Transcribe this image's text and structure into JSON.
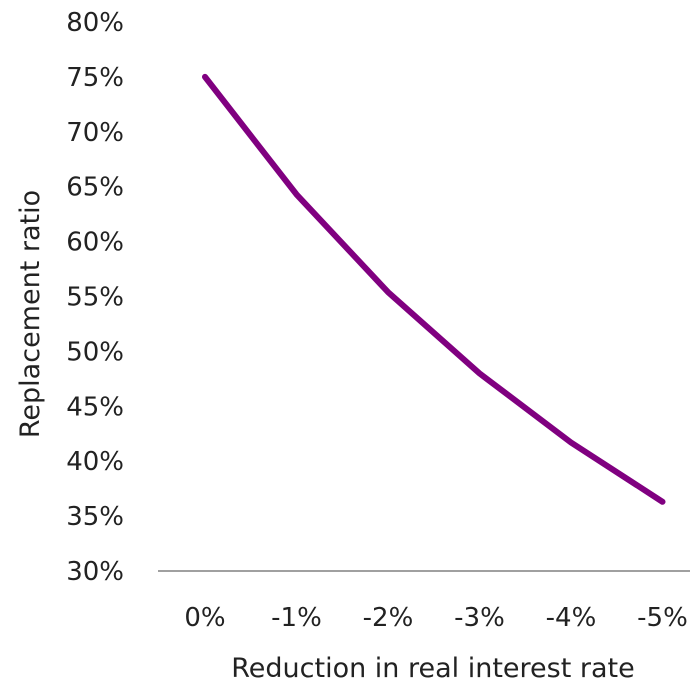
{
  "chart_data": {
    "type": "line",
    "title": "",
    "xlabel": "Reduction in real interest rate",
    "ylabel": "Replacement ratio",
    "categories": [
      "0%",
      "-1%",
      "-2%",
      "-3%",
      "-4%",
      "-5%"
    ],
    "series": [
      {
        "values": [
          75,
          64.3,
          55.4,
          48,
          41.7,
          36.3
        ],
        "color": "#800080"
      }
    ],
    "ylim": [
      30,
      80
    ],
    "yticks": [
      30,
      35,
      40,
      45,
      50,
      55,
      60,
      65,
      70,
      75,
      80
    ],
    "ytick_labels": [
      "30%",
      "35%",
      "40%",
      "45%",
      "50%",
      "55%",
      "60%",
      "65%",
      "70%",
      "75%",
      "80%"
    ],
    "grid": false,
    "legend": "none",
    "axis_color": "#808080"
  }
}
